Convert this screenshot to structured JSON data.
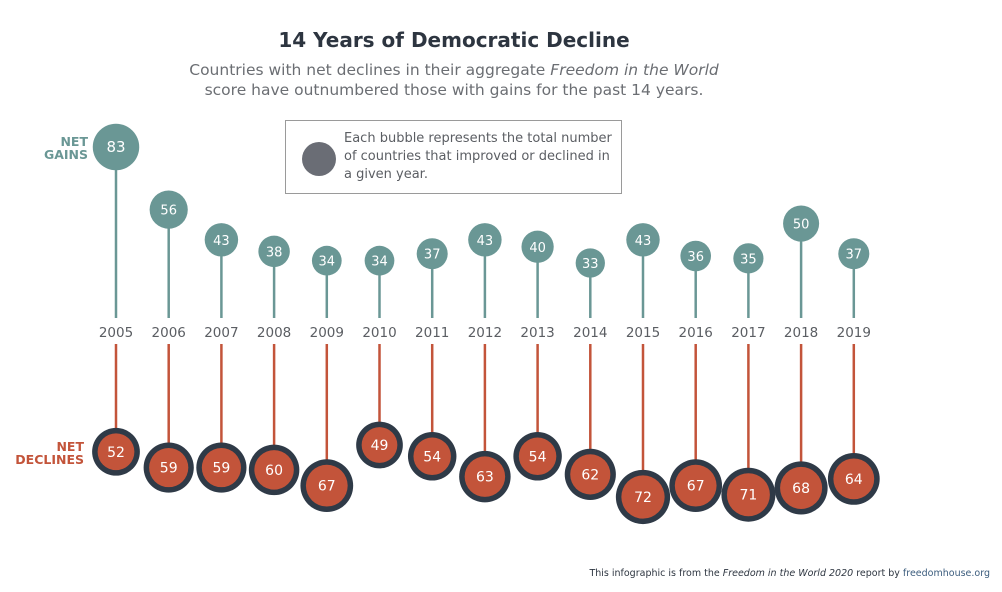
{
  "title": "14 Years of Democratic Decline",
  "subtitle": {
    "line1_pre": "Countries with net declines in their aggregate ",
    "line1_italic": "Freedom in the World",
    "line2": "score have outnumbered those with gains for the past 14 years."
  },
  "legend": {
    "text": "Each bubble represents the total number of countries that improved or declined in a given year."
  },
  "labels": {
    "gains_line1": "NET",
    "gains_line2": "GAINS",
    "declines_line1": "NET",
    "declines_line2": "DECLINES"
  },
  "footer": {
    "pre": "This infographic is from the ",
    "italic": "Freedom in the World 2020",
    "mid": " report by ",
    "link": "freedomhouse.org"
  },
  "colors": {
    "gains": "#6a9795",
    "declines_fill": "#c3543a",
    "declines_ring": "#2f3a47",
    "year_text": "#5b5e63"
  },
  "chart_data": {
    "type": "bubble-lollipop",
    "title": "14 Years of Democratic Decline",
    "categories": [
      "2005",
      "2006",
      "2007",
      "2008",
      "2009",
      "2010",
      "2011",
      "2012",
      "2013",
      "2014",
      "2015",
      "2016",
      "2017",
      "2018",
      "2019"
    ],
    "series": [
      {
        "name": "Net Gains",
        "values": [
          83,
          56,
          43,
          38,
          34,
          34,
          37,
          43,
          40,
          33,
          43,
          36,
          35,
          50,
          37
        ]
      },
      {
        "name": "Net Declines",
        "values": [
          52,
          59,
          59,
          60,
          67,
          49,
          54,
          63,
          54,
          62,
          72,
          67,
          71,
          68,
          64
        ]
      }
    ],
    "xlabel": "",
    "ylabel": "",
    "legend": "Each bubble represents the total number of countries that improved or declined in a given year."
  }
}
